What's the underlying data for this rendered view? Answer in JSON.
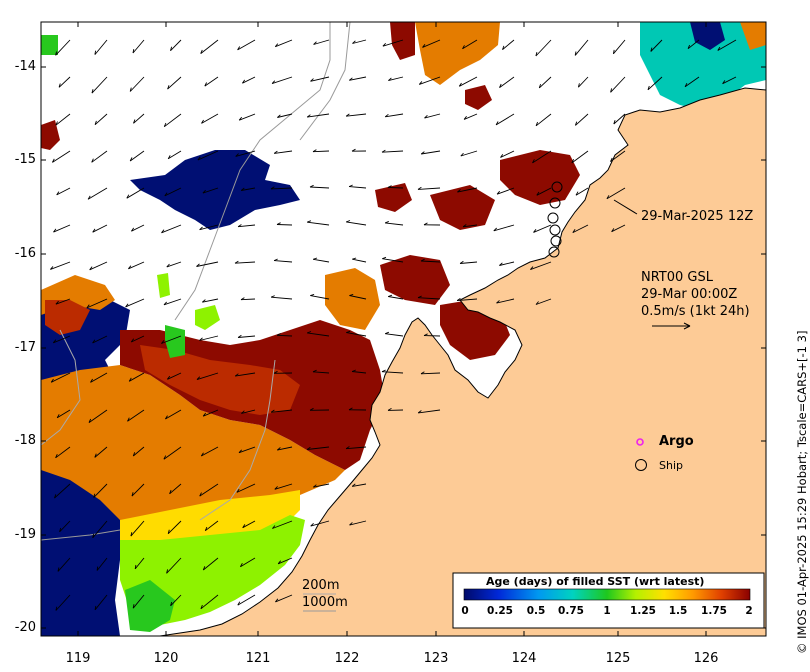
{
  "map": {
    "axes": {
      "y_labels": [
        "-14",
        "-15",
        "-16",
        "-17",
        "-18",
        "-19",
        "-20"
      ],
      "x_labels": [
        "119",
        "120",
        "121",
        "122",
        "123",
        "124",
        "125",
        "126"
      ]
    },
    "annotations": {
      "ship_time": "29-Mar-2025 12Z",
      "product": "NRT00 GSL",
      "current_time": "29-Mar 00:00Z",
      "scale_vector": "0.5m/s (1kt 24h)"
    },
    "isobaths": [
      "200m",
      "1000m"
    ],
    "legend": {
      "argo_label": "Argo",
      "ship_label": "Ship",
      "argo_color": "#ee22ee"
    },
    "colorbar": {
      "title": "Age (days) of filled SST (wrt latest)",
      "ticks": [
        "0",
        "0.25",
        "0.5",
        "0.75",
        "1",
        "1.25",
        "1.5",
        "1.75",
        "2"
      ]
    },
    "credit": "© IMOS 01-Apr-2025 15:29 Hobart; Tscale=CARS+[-1 3]",
    "colors": {
      "land": "#fdcb96",
      "ocean_nodata": "#ffffff",
      "navy": "#000f73",
      "darkred": "#8d0a00",
      "red": "#bb2b00",
      "orange": "#e47c00",
      "yellow": "#ffdc00",
      "lightgreen": "#8ef200",
      "green": "#28c81e",
      "cyan": "#00c8b4"
    }
  }
}
